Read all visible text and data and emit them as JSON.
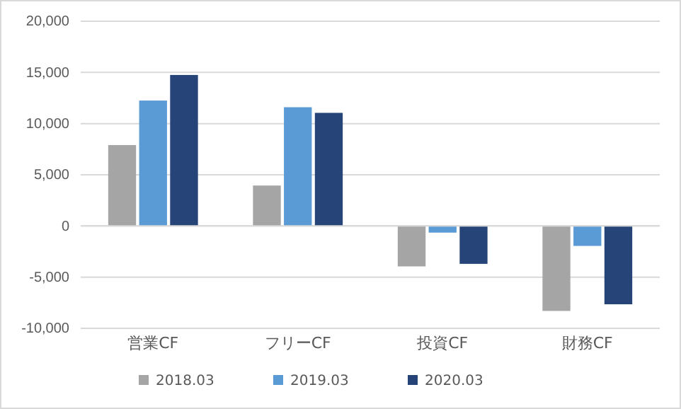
{
  "chart_data": {
    "type": "bar",
    "categories": [
      "営業CF",
      "フリーCF",
      "投資CF",
      "財務CF"
    ],
    "series": [
      {
        "name": "2018.03",
        "color": "#a5a5a5",
        "values": [
          7900,
          3950,
          -3950,
          -8300
        ]
      },
      {
        "name": "2019.03",
        "color": "#5b9bd5",
        "values": [
          12250,
          11600,
          -650,
          -1950
        ]
      },
      {
        "name": "2020.03",
        "color": "#264478",
        "values": [
          14750,
          11050,
          -3700,
          -7650
        ]
      }
    ],
    "ylim": [
      -10000,
      20000
    ],
    "yticks": [
      {
        "value": -10000,
        "label": "-10,000"
      },
      {
        "value": -5000,
        "label": "-5,000"
      },
      0,
      {
        "value": 5000,
        "label": "5,000"
      },
      {
        "value": 10000,
        "label": "10,000"
      },
      {
        "value": 15000,
        "label": "15,000"
      },
      {
        "value": 20000,
        "label": "20,000"
      }
    ],
    "grid": "y",
    "legend": "bottom"
  }
}
